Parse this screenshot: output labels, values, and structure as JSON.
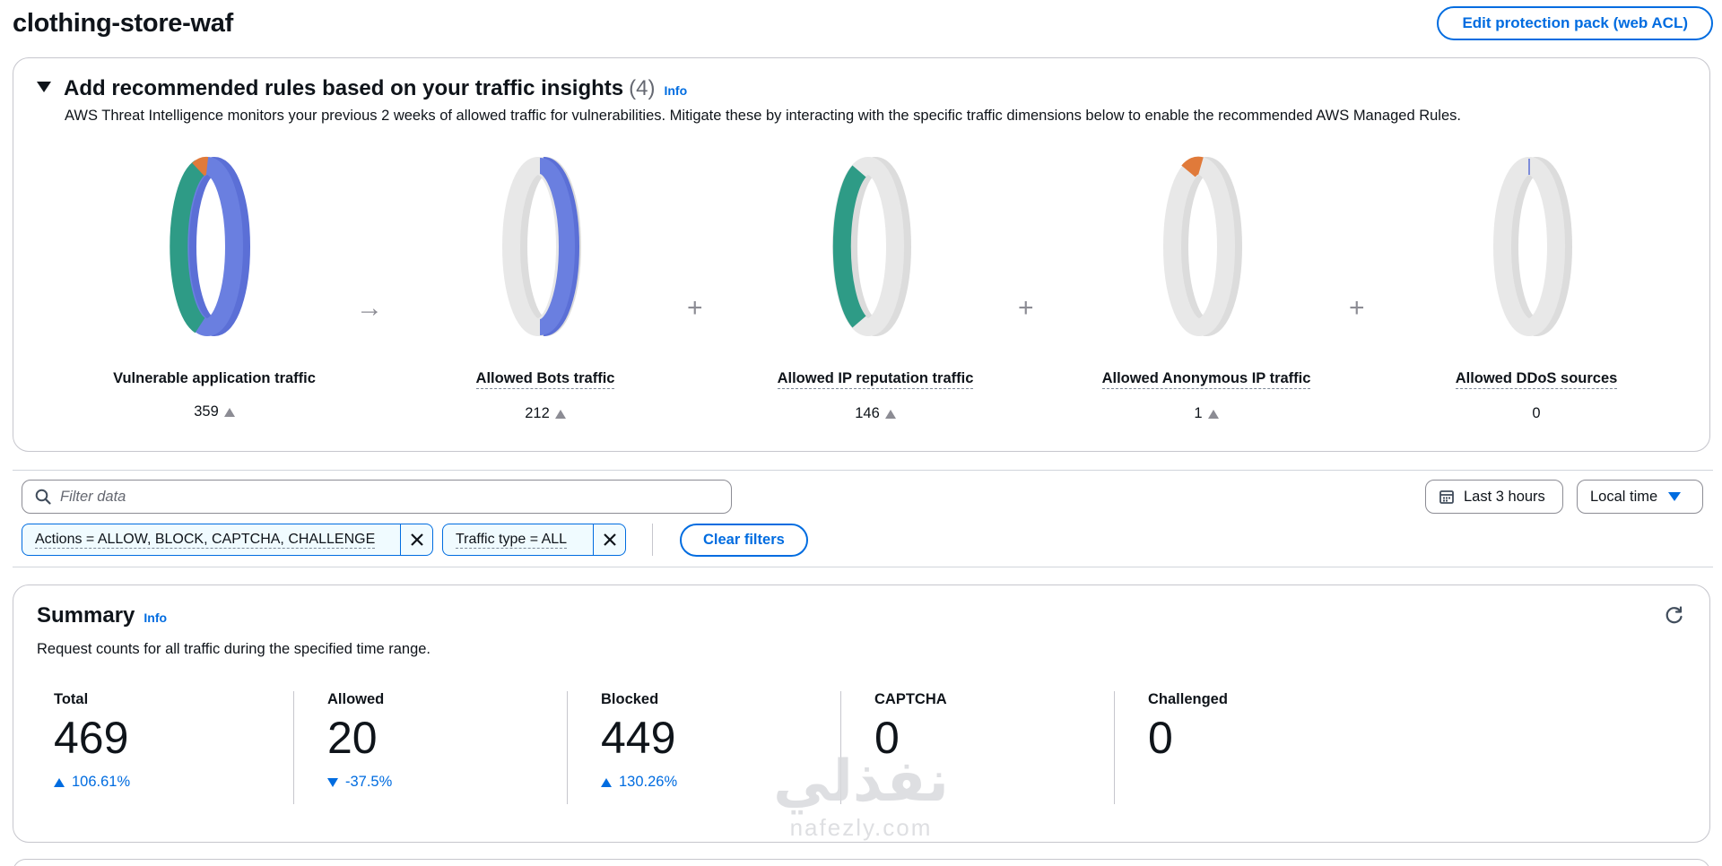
{
  "page": {
    "title": "clothing-store-waf",
    "edit_button": "Edit protection pack (web ACL)"
  },
  "insights": {
    "title": "Add recommended rules based on your traffic insights",
    "count": "(4)",
    "info": "Info",
    "description": "AWS Threat Intelligence monitors your previous 2 weeks of allowed traffic for vulnerabilities. Mitigate these by interacting with the specific traffic dimensions below to enable the recommended AWS Managed Rules.",
    "operators": [
      "→",
      "+",
      "+",
      "+"
    ],
    "donuts": [
      {
        "label": "Vulnerable application traffic",
        "value": "359",
        "trend": "up"
      },
      {
        "label": "Allowed Bots traffic",
        "value": "212",
        "trend": "up"
      },
      {
        "label": "Allowed IP reputation traffic",
        "value": "146",
        "trend": "up"
      },
      {
        "label": "Allowed Anonymous IP traffic",
        "value": "1",
        "trend": "up"
      },
      {
        "label": "Allowed DDoS sources",
        "value": "0",
        "trend": "none"
      }
    ],
    "colors": {
      "blue": "#6a7fe0",
      "teal": "#2e9b86",
      "orange": "#e07a3a",
      "gray": "#e2e2e2"
    }
  },
  "filters": {
    "placeholder": "Filter data",
    "time_range": "Last 3 hours",
    "time_zone": "Local time",
    "tokens": [
      {
        "label": "Actions = ALLOW, BLOCK, CAPTCHA, CHALLENGE"
      },
      {
        "label": "Traffic type = ALL"
      }
    ],
    "clear_button": "Clear filters"
  },
  "summary": {
    "title": "Summary",
    "info": "Info",
    "description": "Request counts for all traffic during the specified time range.",
    "metrics": [
      {
        "label": "Total",
        "value": "469",
        "trend": "106.61%",
        "direction": "up"
      },
      {
        "label": "Allowed",
        "value": "20",
        "trend": "-37.5%",
        "direction": "down"
      },
      {
        "label": "Blocked",
        "value": "449",
        "trend": "130.26%",
        "direction": "up"
      },
      {
        "label": "CAPTCHA",
        "value": "0",
        "trend": "",
        "direction": "none"
      },
      {
        "label": "Challenged",
        "value": "0",
        "trend": "",
        "direction": "none"
      }
    ]
  },
  "watermark": {
    "arabic": "نفذلي",
    "latin": "nafezly.com"
  }
}
